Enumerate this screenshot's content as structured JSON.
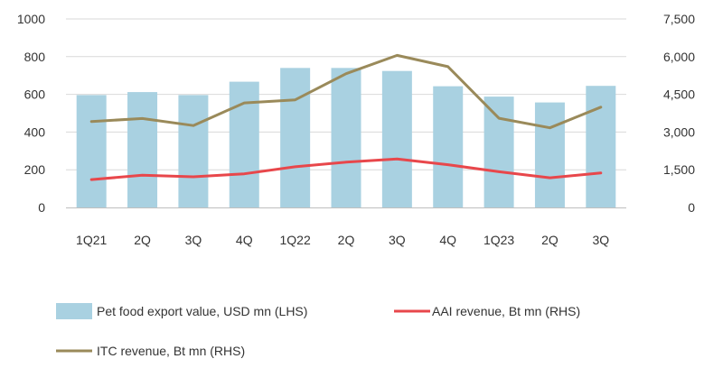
{
  "chart_data": {
    "type": "bar",
    "categories": [
      "1Q21",
      "2Q",
      "3Q",
      "4Q",
      "1Q22",
      "2Q",
      "3Q",
      "4Q",
      "1Q23",
      "2Q",
      "3Q"
    ],
    "series": [
      {
        "name": "Pet food export value, USD mn (LHS)",
        "type": "bar",
        "axis": "left",
        "color": "#a9d1e1",
        "values": [
          596,
          612,
          596,
          667,
          740,
          740,
          724,
          643,
          588,
          557,
          645
        ]
      },
      {
        "name": "AAI revenue, Bt mn (RHS)",
        "type": "line",
        "axis": "right",
        "color": "#e8474b",
        "values": [
          1110,
          1280,
          1220,
          1340,
          1620,
          1800,
          1930,
          1700,
          1420,
          1180,
          1370
        ]
      },
      {
        "name": "ITC revenue, Bt mn (RHS)",
        "type": "line",
        "axis": "right",
        "color": "#9a8a5a",
        "values": [
          3420,
          3540,
          3260,
          4160,
          4280,
          5320,
          6050,
          5600,
          3550,
          3170,
          3990
        ]
      }
    ],
    "y_left": {
      "min": 0,
      "max": 1000,
      "ticks": [
        "0",
        "200",
        "400",
        "600",
        "800",
        "1000"
      ]
    },
    "y_right": {
      "min": 0,
      "max": 7500,
      "ticks": [
        "0",
        "1,500",
        "3,000",
        "4,500",
        "6,000",
        "7,500"
      ]
    },
    "grid": "horizontal",
    "legend_position": "bottom"
  }
}
